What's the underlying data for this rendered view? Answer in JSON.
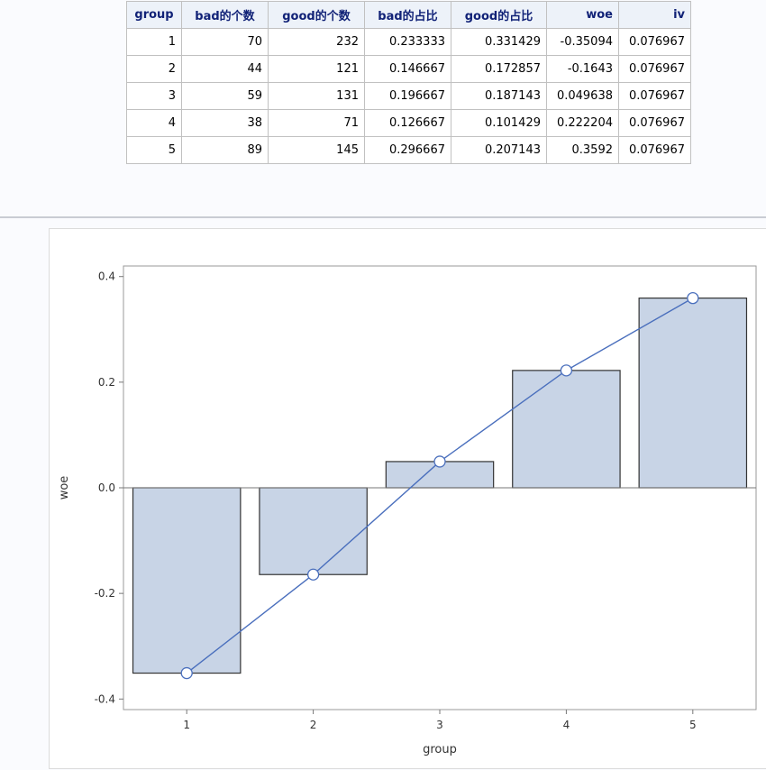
{
  "table": {
    "columns": [
      "group",
      "bad的个数",
      "good的个数",
      "bad的占比",
      "good的占比",
      "woe",
      "iv"
    ],
    "rows": [
      [
        "1",
        "70",
        "232",
        "0.233333",
        "0.331429",
        "-0.35094",
        "0.076967"
      ],
      [
        "2",
        "44",
        "121",
        "0.146667",
        "0.172857",
        "-0.1643",
        "0.076967"
      ],
      [
        "3",
        "59",
        "131",
        "0.196667",
        "0.187143",
        "0.049638",
        "0.076967"
      ],
      [
        "4",
        "38",
        "71",
        "0.126667",
        "0.101429",
        "0.222204",
        "0.076967"
      ],
      [
        "5",
        "89",
        "145",
        "0.296667",
        "0.207143",
        "0.3592",
        "0.076967"
      ]
    ]
  },
  "chart_data": {
    "type": "bar",
    "overlay": "line",
    "categories": [
      "1",
      "2",
      "3",
      "4",
      "5"
    ],
    "values": [
      -0.35094,
      -0.1643,
      0.049638,
      0.222204,
      0.3592
    ],
    "xlabel": "group",
    "ylabel": "woe",
    "ylim": [
      -0.42,
      0.42
    ],
    "yticks": [
      -0.4,
      -0.2,
      0.0,
      0.2,
      0.4
    ],
    "ytick_labels": [
      "-0.4",
      "-0.2",
      "0.0",
      "0.2",
      "0.4"
    ],
    "grid": false,
    "colors": {
      "bar_fill": "#c8d4e6",
      "bar_stroke": "#333333",
      "line": "#4a6fbd",
      "marker_fill": "#ffffff"
    }
  }
}
